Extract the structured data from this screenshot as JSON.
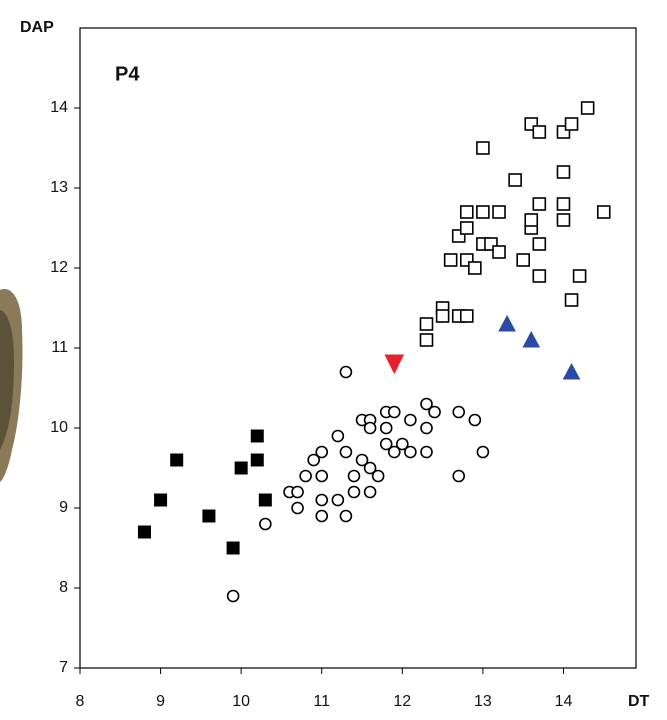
{
  "chart_data": {
    "type": "scatter",
    "panel_label": "P4",
    "x_label": "DT",
    "y_label": "DAP",
    "xlim": [
      8,
      14.9
    ],
    "ylim": [
      7,
      15
    ],
    "xticks": [
      8,
      9,
      10,
      11,
      12,
      13,
      14
    ],
    "yticks": [
      7,
      8,
      9,
      10,
      11,
      12,
      13,
      14
    ],
    "grid": false,
    "series": [
      {
        "marker": "square",
        "color": "#000000",
        "filled": true,
        "x": [
          8.8,
          9.0,
          9.2,
          9.6,
          9.9,
          10.0,
          10.2,
          10.2,
          10.3
        ],
        "y": [
          8.7,
          9.1,
          9.6,
          8.9,
          8.5,
          9.5,
          9.9,
          9.6,
          9.1
        ]
      },
      {
        "marker": "circle",
        "color": "#000000",
        "filled": false,
        "x": [
          11.3,
          9.9,
          10.3,
          10.6,
          10.7,
          10.7,
          10.8,
          10.9,
          11.0,
          11.0,
          11.0,
          11.0,
          11.2,
          11.2,
          11.3,
          11.3,
          11.4,
          11.4,
          11.5,
          11.5,
          11.6,
          11.6,
          11.6,
          11.6,
          11.7,
          11.8,
          11.8,
          11.8,
          11.9,
          11.9,
          12.0,
          12.1,
          12.1,
          12.3,
          12.3,
          12.3,
          12.4,
          12.7,
          12.7,
          12.9,
          13.0
        ],
        "y": [
          10.7,
          7.9,
          8.8,
          9.2,
          9.2,
          9.0,
          9.4,
          9.6,
          9.4,
          9.7,
          9.1,
          8.9,
          9.9,
          9.1,
          8.9,
          9.7,
          9.2,
          9.4,
          9.6,
          10.1,
          9.5,
          9.2,
          10.1,
          10.0,
          9.4,
          10.2,
          9.8,
          10.0,
          9.7,
          10.2,
          9.8,
          9.7,
          10.1,
          10.3,
          10.0,
          9.7,
          10.2,
          10.2,
          9.4,
          10.1,
          9.7
        ]
      },
      {
        "marker": "square",
        "color": "#000000",
        "filled": false,
        "x": [
          12.3,
          12.3,
          12.5,
          12.5,
          12.7,
          12.8,
          12.6,
          12.8,
          12.9,
          12.7,
          12.8,
          12.8,
          13.0,
          13.0,
          13.1,
          13.2,
          13.2,
          13.0,
          13.4,
          13.5,
          13.6,
          13.6,
          13.7,
          13.7,
          13.7,
          13.6,
          13.7,
          14.0,
          14.1,
          14.3,
          14.0,
          14.0,
          14.0,
          14.1,
          14.2,
          14.5
        ],
        "y": [
          11.1,
          11.3,
          11.5,
          11.4,
          11.4,
          11.4,
          12.1,
          12.1,
          12.0,
          12.4,
          12.5,
          12.7,
          12.7,
          12.3,
          12.3,
          12.2,
          12.7,
          13.5,
          13.1,
          12.1,
          12.5,
          12.6,
          12.8,
          12.3,
          11.9,
          13.8,
          13.7,
          13.7,
          13.8,
          14.0,
          13.2,
          12.8,
          12.6,
          11.6,
          11.9,
          12.7
        ]
      },
      {
        "marker": "triangle-down",
        "color": "#e8202a",
        "filled": true,
        "x": [
          11.9
        ],
        "y": [
          10.8
        ]
      },
      {
        "marker": "triangle-up",
        "color": "#2b4aa8",
        "filled": true,
        "x": [
          13.3,
          13.6,
          14.1
        ],
        "y": [
          11.3,
          11.1,
          10.7
        ]
      }
    ]
  }
}
